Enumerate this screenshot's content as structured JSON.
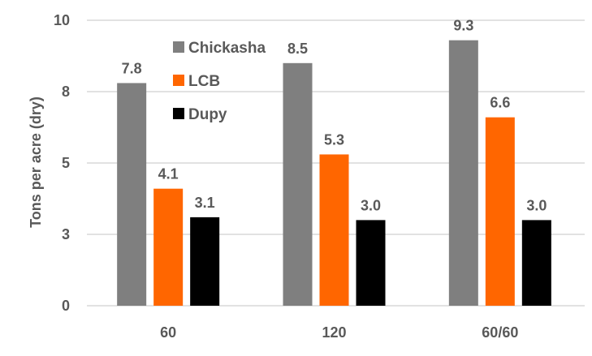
{
  "chart_data": {
    "type": "bar",
    "title": "",
    "xlabel": "",
    "ylabel": "Tons per acre (dry)",
    "ylim": [
      0,
      10
    ],
    "yticks": [
      0,
      2.5,
      5,
      7.5,
      10
    ],
    "ytick_labels": [
      "0",
      "3",
      "5",
      "8",
      "10"
    ],
    "grid": true,
    "legend_position": "top-left",
    "categories": [
      "60",
      "120",
      "60/60"
    ],
    "series": [
      {
        "name": "Chickasha",
        "color": "#7f7f7f",
        "values": [
          7.8,
          8.5,
          9.3
        ],
        "labels": [
          "7.8",
          "8.5",
          "9.3"
        ]
      },
      {
        "name": "LCB",
        "color": "#ff6600",
        "values": [
          4.1,
          5.3,
          6.6
        ],
        "labels": [
          "4.1",
          "5.3",
          "6.6"
        ]
      },
      {
        "name": "Dupy",
        "color": "#000000",
        "values": [
          3.1,
          3.0,
          3.0
        ],
        "labels": [
          "3.1",
          "3.0",
          "3.0"
        ]
      }
    ]
  }
}
